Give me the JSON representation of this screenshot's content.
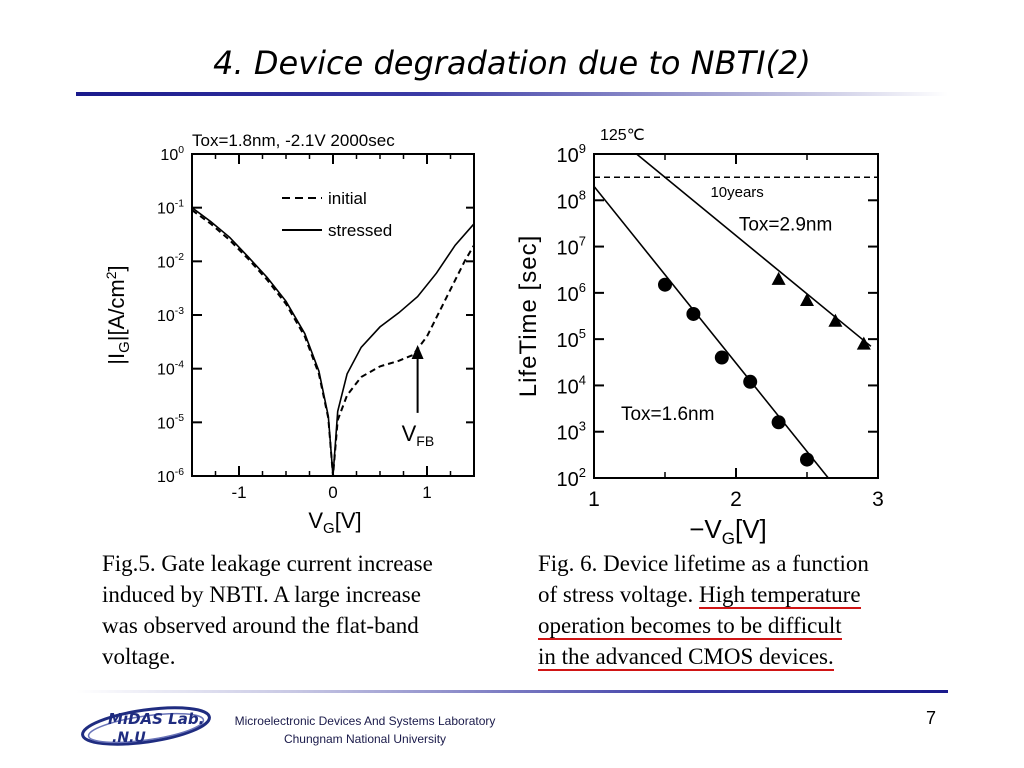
{
  "slide": {
    "title": "4. Device degradation due to NBTI(2)",
    "page_number": "7"
  },
  "footer": {
    "logo_line1": "MiDAS Lab.",
    "logo_line2": ".N.U",
    "lab_line1": "Microelectronic Devices And Systems Laboratory",
    "lab_line2": "Chungnam National University"
  },
  "captions": {
    "fig5": [
      "Fig.5. Gate leakage current increase",
      "induced by NBTI. A large increase",
      "was observed around the flat-band",
      "voltage."
    ],
    "fig6_line1": "Fig. 6. Device lifetime as a function",
    "fig6_line2_a": "of stress voltage. ",
    "fig6_line2_b": "High temperature",
    "fig6_line3": "operation becomes to be difficult",
    "fig6_line4": "in the advanced CMOS devices."
  },
  "chart_data": [
    {
      "type": "line",
      "title": "Tox=1.8nm, -2.1V 2000sec",
      "xlabel": "VG[V]",
      "ylabel": "|IG|[A/cm2]",
      "xlim": [
        -1.5,
        1.5
      ],
      "ylim": [
        1e-06,
        1
      ],
      "y_scale": "log",
      "x_ticks": [
        "-1",
        "0",
        "1"
      ],
      "y_ticks": [
        "10^0",
        "10^-1",
        "10^-2",
        "10^-3",
        "10^-4",
        "10^-5",
        "10^-6"
      ],
      "legend_position": "top-right",
      "annotation": "VFB",
      "annotation_x": 0.9,
      "series": [
        {
          "name": "initial",
          "style": "dashed",
          "x": [
            -1.5,
            -1.3,
            -1.1,
            -0.9,
            -0.7,
            -0.5,
            -0.3,
            -0.15,
            -0.05,
            0,
            0.05,
            0.15,
            0.3,
            0.5,
            0.7,
            0.85,
            1.0,
            1.2,
            1.4,
            1.5
          ],
          "y": [
            0.09,
            0.05,
            0.025,
            0.011,
            0.0045,
            0.0016,
            0.0004,
            8e-05,
            1.2e-05,
            1e-06,
            1.1e-05,
            3.2e-05,
            7e-05,
            0.00011,
            0.00014,
            0.00018,
            0.0004,
            0.002,
            0.01,
            0.02
          ]
        },
        {
          "name": "stressed",
          "style": "solid",
          "x": [
            -1.5,
            -1.3,
            -1.1,
            -0.9,
            -0.7,
            -0.5,
            -0.3,
            -0.15,
            -0.05,
            0,
            0.05,
            0.15,
            0.3,
            0.5,
            0.7,
            0.9,
            1.1,
            1.3,
            1.5
          ],
          "y": [
            0.1,
            0.055,
            0.028,
            0.012,
            0.005,
            0.0018,
            0.00045,
            9e-05,
            1.3e-05,
            1e-06,
            1.6e-05,
            8e-05,
            0.00025,
            0.0006,
            0.0011,
            0.0022,
            0.006,
            0.02,
            0.05
          ]
        }
      ]
    },
    {
      "type": "scatter",
      "temperature_label": "125℃",
      "xlabel": "−VG[V]",
      "ylabel": "LifeTime [sec]",
      "xlim": [
        1,
        3
      ],
      "ylim": [
        100,
        1000000000
      ],
      "y_scale": "log",
      "x_ticks": [
        "1",
        "2",
        "3"
      ],
      "y_ticks": [
        "10^9",
        "10^8",
        "10^7",
        "10^6",
        "10^5",
        "10^4",
        "10^3",
        "10^2"
      ],
      "reference_line": {
        "label": "10years",
        "y": 315000000,
        "style": "dashed"
      },
      "series": [
        {
          "name": "Tox=2.9nm",
          "marker": "triangle",
          "x": [
            2.3,
            2.5,
            2.7,
            2.9
          ],
          "y": [
            2000000,
            700000,
            250000,
            80000
          ],
          "fit_line": {
            "x": [
              1.3,
              2.95
            ],
            "y": [
              1000000000,
              70000
            ]
          }
        },
        {
          "name": "Tox=1.6nm",
          "marker": "circle",
          "x": [
            1.5,
            1.7,
            1.9,
            2.1,
            2.3,
            2.5
          ],
          "y": [
            1500000,
            350000,
            40000,
            12000,
            1600,
            250
          ],
          "fit_line": {
            "x": [
              1.0,
              2.65
            ],
            "y": [
              200000000,
              100
            ]
          }
        }
      ]
    }
  ]
}
